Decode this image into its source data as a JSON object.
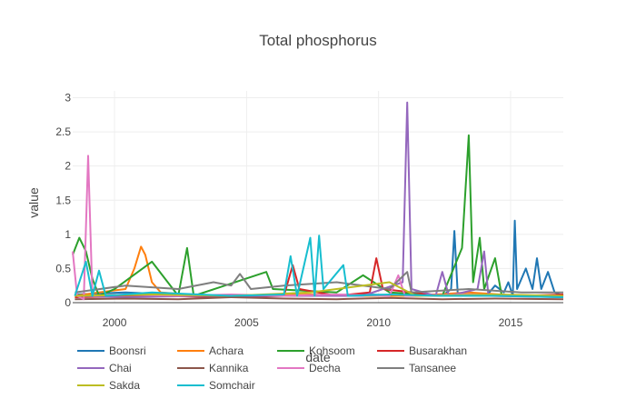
{
  "chart_data": {
    "type": "line",
    "title": "Total phosphorus",
    "xlabel": "date",
    "ylabel": "value",
    "xlim": [
      "1998-06-01",
      "2016-12-31"
    ],
    "ylim": [
      0,
      3.1
    ],
    "x_ticks": [
      "2000",
      "2005",
      "2010",
      "2015"
    ],
    "y_ticks": [
      "0",
      "0.5",
      "1",
      "1.5",
      "2",
      "2.5",
      "3"
    ],
    "grid": true,
    "legend_position": "bottom",
    "series": [
      {
        "name": "Boonsri",
        "color": "#1f77b4",
        "points": [
          [
            "1998-07-01",
            0.12
          ],
          [
            "2000-06-01",
            0.15
          ],
          [
            "2003-06-01",
            0.1
          ],
          [
            "2006-06-01",
            0.1
          ],
          [
            "2009-06-01",
            0.12
          ],
          [
            "2012-06-01",
            0.1
          ],
          [
            "2012-10-01",
            0.2
          ],
          [
            "2012-11-15",
            1.05
          ],
          [
            "2013-01-01",
            0.1
          ],
          [
            "2014-02-01",
            0.1
          ],
          [
            "2014-06-01",
            0.25
          ],
          [
            "2014-10-01",
            0.15
          ],
          [
            "2014-12-01",
            0.3
          ],
          [
            "2015-02-01",
            0.1
          ],
          [
            "2015-03-01",
            1.2
          ],
          [
            "2015-04-01",
            0.2
          ],
          [
            "2015-08-01",
            0.5
          ],
          [
            "2015-11-01",
            0.2
          ],
          [
            "2016-01-01",
            0.65
          ],
          [
            "2016-03-01",
            0.2
          ],
          [
            "2016-06-01",
            0.45
          ],
          [
            "2016-09-01",
            0.15
          ],
          [
            "2016-12-31",
            0.1
          ]
        ]
      },
      {
        "name": "Achara",
        "color": "#ff7f0e",
        "points": [
          [
            "1998-07-01",
            0.1
          ],
          [
            "1999-06-01",
            0.15
          ],
          [
            "2000-06-01",
            0.2
          ],
          [
            "2000-10-01",
            0.5
          ],
          [
            "2001-01-01",
            0.82
          ],
          [
            "2001-03-01",
            0.7
          ],
          [
            "2001-06-01",
            0.3
          ],
          [
            "2001-10-01",
            0.15
          ],
          [
            "2003-06-01",
            0.1
          ],
          [
            "2005-06-01",
            0.1
          ],
          [
            "2007-06-01",
            0.12
          ],
          [
            "2009-06-01",
            0.1
          ],
          [
            "2011-06-01",
            0.1
          ],
          [
            "2013-06-01",
            0.15
          ],
          [
            "2015-06-01",
            0.1
          ],
          [
            "2016-12-31",
            0.1
          ]
        ]
      },
      {
        "name": "Kohsoom",
        "color": "#2ca02c",
        "points": [
          [
            "1998-06-01",
            0.7
          ],
          [
            "1998-09-01",
            0.95
          ],
          [
            "1998-12-01",
            0.75
          ],
          [
            "1999-03-01",
            0.35
          ],
          [
            "1999-06-01",
            0.1
          ],
          [
            "2000-01-01",
            0.2
          ],
          [
            "2001-06-01",
            0.6
          ],
          [
            "2002-06-01",
            0.1
          ],
          [
            "2002-10-01",
            0.8
          ],
          [
            "2003-01-01",
            0.1
          ],
          [
            "2005-10-01",
            0.45
          ],
          [
            "2006-01-01",
            0.2
          ],
          [
            "2008-06-01",
            0.15
          ],
          [
            "2009-06-01",
            0.4
          ],
          [
            "2010-06-01",
            0.15
          ],
          [
            "2012-06-01",
            0.1
          ],
          [
            "2013-03-01",
            0.8
          ],
          [
            "2013-06-01",
            2.45
          ],
          [
            "2013-08-01",
            0.3
          ],
          [
            "2013-11-01",
            0.95
          ],
          [
            "2014-01-01",
            0.2
          ],
          [
            "2014-06-01",
            0.65
          ],
          [
            "2014-09-01",
            0.1
          ],
          [
            "2015-06-01",
            0.1
          ],
          [
            "2016-12-31",
            0.08
          ]
        ]
      },
      {
        "name": "Busarakhan",
        "color": "#d62728",
        "points": [
          [
            "1998-07-01",
            0.08
          ],
          [
            "2001-06-01",
            0.1
          ],
          [
            "2004-06-01",
            0.08
          ],
          [
            "2006-06-01",
            0.1
          ],
          [
            "2006-10-01",
            0.55
          ],
          [
            "2007-01-01",
            0.2
          ],
          [
            "2008-06-01",
            0.1
          ],
          [
            "2009-09-01",
            0.15
          ],
          [
            "2009-12-01",
            0.65
          ],
          [
            "2010-03-01",
            0.2
          ],
          [
            "2012-06-01",
            0.1
          ],
          [
            "2015-06-01",
            0.1
          ],
          [
            "2016-12-31",
            0.12
          ]
        ]
      },
      {
        "name": "Chai",
        "color": "#9467bd",
        "points": [
          [
            "1998-07-01",
            0.1
          ],
          [
            "2000-06-01",
            0.08
          ],
          [
            "2003-06-01",
            0.1
          ],
          [
            "2006-06-01",
            0.1
          ],
          [
            "2009-06-01",
            0.1
          ],
          [
            "2010-12-01",
            0.3
          ],
          [
            "2011-02-01",
            2.93
          ],
          [
            "2011-04-01",
            0.2
          ],
          [
            "2012-03-01",
            0.1
          ],
          [
            "2012-06-01",
            0.45
          ],
          [
            "2012-09-01",
            0.1
          ],
          [
            "2013-10-01",
            0.2
          ],
          [
            "2014-01-01",
            0.75
          ],
          [
            "2014-03-01",
            0.1
          ],
          [
            "2016-12-31",
            0.08
          ]
        ]
      },
      {
        "name": "Kannika",
        "color": "#8c564b",
        "points": [
          [
            "1998-07-01",
            0.05
          ],
          [
            "2000-06-01",
            0.06
          ],
          [
            "2002-06-01",
            0.05
          ],
          [
            "2004-06-01",
            0.08
          ],
          [
            "2006-06-01",
            0.06
          ],
          [
            "2008-06-01",
            0.05
          ],
          [
            "2010-06-01",
            0.07
          ],
          [
            "2012-06-01",
            0.05
          ],
          [
            "2014-06-01",
            0.06
          ],
          [
            "2016-12-31",
            0.05
          ]
        ]
      },
      {
        "name": "Decha",
        "color": "#e377c2",
        "points": [
          [
            "1998-06-01",
            0.75
          ],
          [
            "1998-08-01",
            0.1
          ],
          [
            "1998-11-01",
            0.05
          ],
          [
            "1999-01-01",
            2.15
          ],
          [
            "1999-03-01",
            0.1
          ],
          [
            "2000-06-01",
            0.12
          ],
          [
            "2002-06-01",
            0.1
          ],
          [
            "2004-06-01",
            0.12
          ],
          [
            "2006-06-01",
            0.1
          ],
          [
            "2008-06-01",
            0.12
          ],
          [
            "2010-06-01",
            0.1
          ],
          [
            "2010-10-01",
            0.4
          ],
          [
            "2011-01-01",
            0.1
          ],
          [
            "2013-06-01",
            0.12
          ],
          [
            "2016-12-31",
            0.1
          ]
        ]
      },
      {
        "name": "Tansanee",
        "color": "#7f7f7f",
        "points": [
          [
            "1998-07-01",
            0.15
          ],
          [
            "2000-06-01",
            0.25
          ],
          [
            "2002-06-01",
            0.2
          ],
          [
            "2003-10-01",
            0.3
          ],
          [
            "2004-06-01",
            0.25
          ],
          [
            "2004-10-01",
            0.42
          ],
          [
            "2005-03-01",
            0.2
          ],
          [
            "2006-06-01",
            0.25
          ],
          [
            "2008-06-01",
            0.3
          ],
          [
            "2010-06-01",
            0.2
          ],
          [
            "2011-02-01",
            0.45
          ],
          [
            "2011-04-01",
            0.15
          ],
          [
            "2013-06-01",
            0.2
          ],
          [
            "2015-06-01",
            0.15
          ],
          [
            "2016-12-31",
            0.15
          ]
        ]
      },
      {
        "name": "Sakda",
        "color": "#bcbd22",
        "points": [
          [
            "1998-07-01",
            0.1
          ],
          [
            "2001-06-01",
            0.12
          ],
          [
            "2004-06-01",
            0.1
          ],
          [
            "2007-06-01",
            0.15
          ],
          [
            "2010-06-01",
            0.3
          ],
          [
            "2011-06-01",
            0.1
          ],
          [
            "2014-06-01",
            0.12
          ],
          [
            "2016-12-31",
            0.1
          ]
        ]
      },
      {
        "name": "Somchair",
        "color": "#17becf",
        "points": [
          [
            "1998-07-01",
            0.1
          ],
          [
            "1998-12-01",
            0.6
          ],
          [
            "1999-03-01",
            0.1
          ],
          [
            "1999-06-01",
            0.47
          ],
          [
            "1999-09-01",
            0.1
          ],
          [
            "2001-06-01",
            0.15
          ],
          [
            "2004-06-01",
            0.1
          ],
          [
            "2006-06-01",
            0.12
          ],
          [
            "2006-09-01",
            0.68
          ],
          [
            "2006-12-01",
            0.1
          ],
          [
            "2007-06-01",
            0.95
          ],
          [
            "2007-08-01",
            0.1
          ],
          [
            "2007-10-01",
            0.98
          ],
          [
            "2007-12-01",
            0.2
          ],
          [
            "2008-09-01",
            0.55
          ],
          [
            "2008-11-01",
            0.1
          ],
          [
            "2010-06-01",
            0.12
          ],
          [
            "2012-06-01",
            0.1
          ],
          [
            "2014-06-01",
            0.1
          ],
          [
            "2016-12-31",
            0.08
          ]
        ]
      }
    ]
  }
}
